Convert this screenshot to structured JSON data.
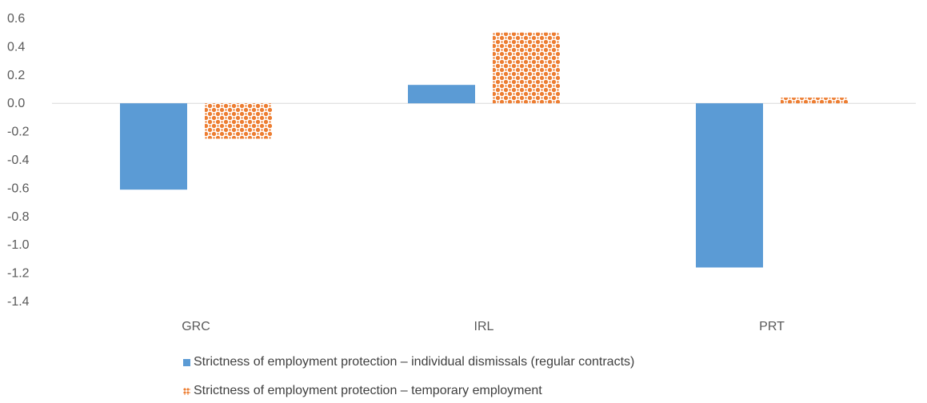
{
  "chart_data": {
    "type": "bar",
    "categories": [
      "GRC",
      "IRL",
      "PRT"
    ],
    "series": [
      {
        "name": "Strictness of employment protection – individual dismissals (regular contracts)",
        "values": [
          -0.61,
          0.13,
          -1.16
        ],
        "color": "#5b9bd5",
        "pattern": "solid"
      },
      {
        "name": "Strictness of employment protection – temporary employment",
        "values": [
          -0.25,
          0.5,
          0.04
        ],
        "color": "#ed7d31",
        "pattern": "dotted"
      }
    ],
    "ylim": [
      -1.4,
      0.6
    ],
    "yticks": [
      "0.6",
      "0.4",
      "0.2",
      "0.0",
      "-0.2",
      "-0.4",
      "-0.6",
      "-0.8",
      "-1.0",
      "-1.2",
      "-1.4"
    ],
    "grid": false,
    "legend": "bottom",
    "title": "",
    "xlabel": "",
    "ylabel": ""
  }
}
